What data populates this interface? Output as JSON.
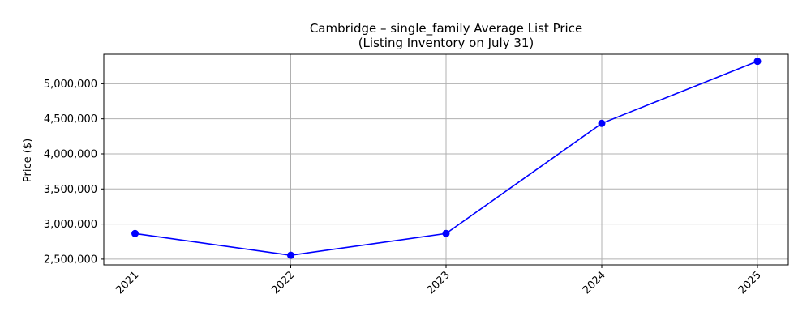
{
  "chart_data": {
    "type": "line",
    "title": "Cambridge – single_family Average List Price",
    "subtitle": "(Listing Inventory on July 31)",
    "xlabel": "",
    "ylabel": "Price ($)",
    "x": [
      "2021",
      "2022",
      "2023",
      "2024",
      "2025"
    ],
    "series": [
      {
        "values": [
          2865000,
          2555000,
          2865000,
          4435000,
          5320000
        ],
        "color": "#0000ff",
        "marker": "circle"
      }
    ],
    "yticks": [
      2500000,
      3000000,
      3500000,
      4000000,
      4500000,
      5000000
    ],
    "ytick_labels": [
      "2,500,000",
      "3,000,000",
      "3,500,000",
      "4,000,000",
      "4,500,000",
      "5,000,000"
    ],
    "ylim": [
      2418000,
      5420000
    ],
    "grid": true,
    "legend": "none"
  }
}
